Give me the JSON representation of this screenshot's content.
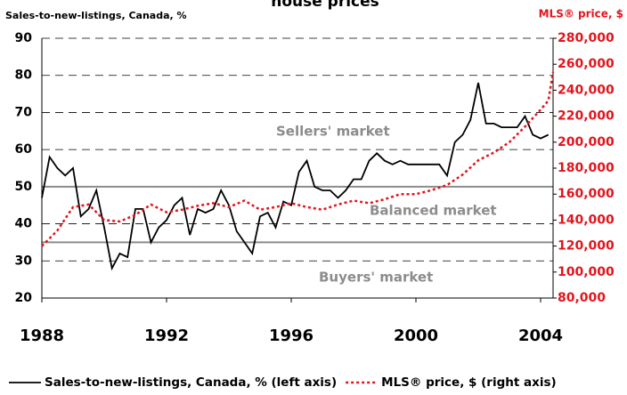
{
  "chart_data": {
    "type": "line",
    "title": "house prices",
    "y_label": "Sales-to-new-listings, Canada, %",
    "y2_label": "MLS® price, $",
    "xlim": [
      1988,
      2004.4
    ],
    "xticks": [
      1988,
      1992,
      1996,
      2000,
      2004
    ],
    "ylim": [
      20,
      90
    ],
    "yticks": [
      20,
      30,
      40,
      50,
      60,
      70,
      80,
      90
    ],
    "y2lim": [
      80000,
      280000
    ],
    "y2ticks": [
      {
        "value": 80000,
        "label": "80,000"
      },
      {
        "value": 100000,
        "label": "100,000"
      },
      {
        "value": 120000,
        "label": "120,000"
      },
      {
        "value": 140000,
        "label": "140,000"
      },
      {
        "value": 160000,
        "label": "160,000"
      },
      {
        "value": 180000,
        "label": "180,000"
      },
      {
        "value": 200000,
        "label": "200,000"
      },
      {
        "value": 220000,
        "label": "220,000"
      },
      {
        "value": 240000,
        "label": "240,000"
      },
      {
        "value": 260000,
        "label": "260,000"
      },
      {
        "value": 280000,
        "label": "280,000"
      }
    ],
    "grid": true,
    "reference_lines": [
      50,
      35
    ],
    "annotations": [
      "Sellers' market",
      "Balanced market",
      "Buyers' market"
    ],
    "series": [
      {
        "name": "Sales-to-new-listings, Canada, % (left axis)",
        "color": "#000000",
        "style": "solid",
        "x": [
          1988,
          1988.25,
          1988.5,
          1988.75,
          1989,
          1989.25,
          1989.5,
          1989.75,
          1990,
          1990.25,
          1990.5,
          1990.75,
          1991,
          1991.25,
          1991.5,
          1991.75,
          1992,
          1992.25,
          1992.5,
          1992.75,
          1993,
          1993.25,
          1993.5,
          1993.75,
          1994,
          1994.25,
          1994.5,
          1994.75,
          1995,
          1995.25,
          1995.5,
          1995.75,
          1996,
          1996.25,
          1996.5,
          1996.75,
          1997,
          1997.25,
          1997.5,
          1997.75,
          1998,
          1998.25,
          1998.5,
          1998.75,
          1999,
          1999.25,
          1999.5,
          1999.75,
          2000,
          2000.25,
          2000.5,
          2000.75,
          2001,
          2001.25,
          2001.5,
          2001.75,
          2002,
          2002.25,
          2002.5,
          2002.75,
          2003,
          2003.25,
          2003.5,
          2003.75,
          2004,
          2004.25
        ],
        "values": [
          47,
          58,
          55,
          53,
          55,
          42,
          44,
          49,
          39,
          28,
          32,
          31,
          44,
          44,
          35,
          39,
          41,
          45,
          47,
          37,
          44,
          43,
          44,
          49,
          45,
          38,
          35,
          32,
          42,
          43,
          39,
          46,
          45,
          54,
          57,
          50,
          49,
          49,
          47,
          49,
          52,
          52,
          57,
          59,
          57,
          56,
          57,
          56,
          56,
          56,
          56,
          56,
          53,
          62,
          64,
          68,
          78,
          67,
          67,
          66,
          66,
          66,
          69,
          64,
          63,
          64
        ]
      },
      {
        "name": "MLS® price, $ (right axis)",
        "color": "#e3141c",
        "style": "dotted",
        "axis": "y2",
        "x": [
          1988,
          1988.5,
          1989,
          1989.5,
          1990,
          1990.5,
          1991,
          1991.5,
          1992,
          1992.5,
          1993,
          1993.5,
          1994,
          1994.5,
          1995,
          1995.5,
          1996,
          1996.5,
          1997,
          1997.5,
          1998,
          1998.5,
          1999,
          1999.5,
          2000,
          2000.5,
          2001,
          2001.5,
          2002,
          2002.5,
          2003,
          2003.5,
          2004,
          2004.25,
          2004.4
        ],
        "values": [
          120000,
          132000,
          150000,
          152000,
          140000,
          139000,
          144000,
          152000,
          146000,
          148000,
          151000,
          153000,
          150000,
          155000,
          148000,
          150000,
          153000,
          150000,
          148000,
          152000,
          155000,
          153000,
          156000,
          160000,
          160000,
          163000,
          167000,
          175000,
          186000,
          192000,
          200000,
          212000,
          225000,
          232000,
          254000
        ]
      }
    ]
  }
}
